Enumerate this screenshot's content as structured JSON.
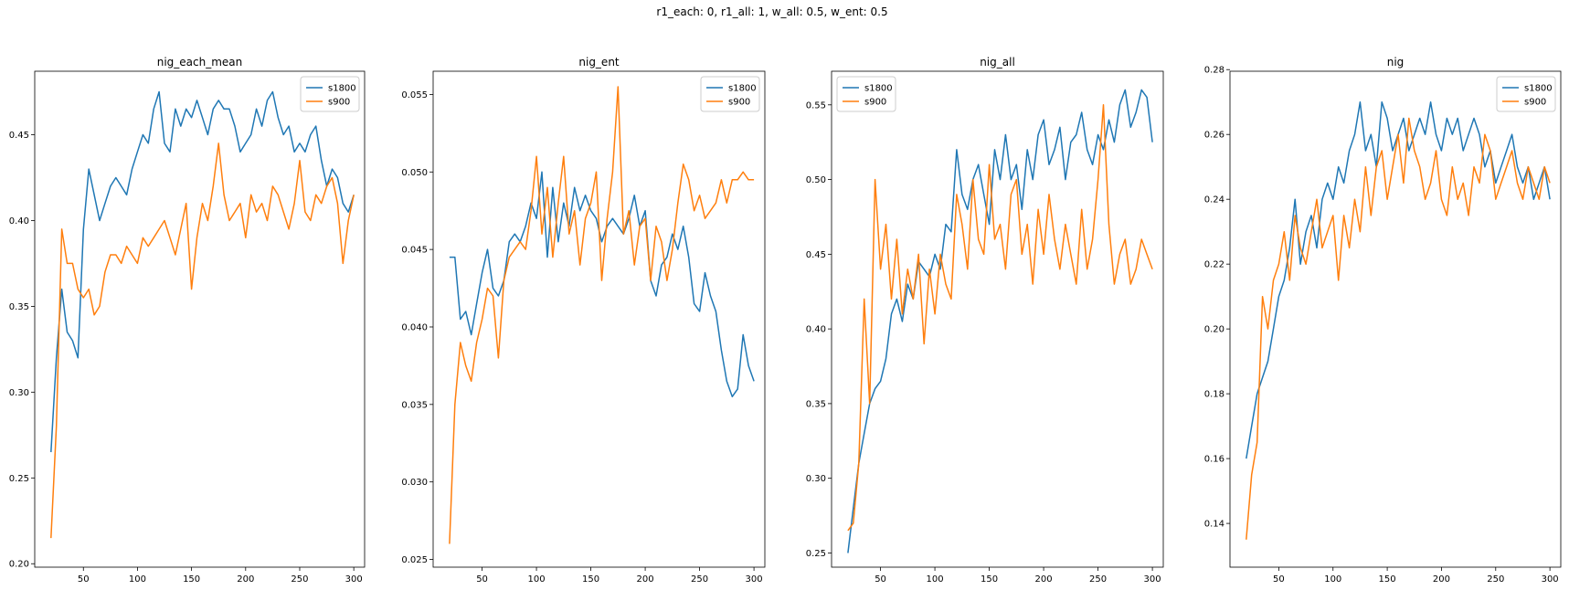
{
  "figure": {
    "suptitle": "r1_each: 0, r1_all: 1, w_all: 0.5, w_ent: 0.5"
  },
  "colors": {
    "s1800": "#1f77b4",
    "s900": "#ff7f0e"
  },
  "chart_data": [
    {
      "type": "line",
      "title": "nig_each_mean",
      "xlabel": "",
      "ylabel": "",
      "xlim": [
        5,
        310
      ],
      "ylim": [
        0.198,
        0.487
      ],
      "xticks": [
        "50",
        "100",
        "150",
        "200",
        "250",
        "300"
      ],
      "yticks": [
        "0.20",
        "0.25",
        "0.30",
        "0.35",
        "0.40",
        "0.45"
      ],
      "legend": {
        "loc": "upper-right",
        "entries": [
          "s1800",
          "s900"
        ]
      },
      "series": [
        {
          "name": "s1800",
          "x": [
            20,
            25,
            30,
            35,
            40,
            45,
            50,
            55,
            60,
            65,
            70,
            75,
            80,
            85,
            90,
            95,
            100,
            105,
            110,
            115,
            120,
            125,
            130,
            135,
            140,
            145,
            150,
            155,
            160,
            165,
            170,
            175,
            180,
            185,
            190,
            195,
            200,
            205,
            210,
            215,
            220,
            225,
            230,
            235,
            240,
            245,
            250,
            255,
            260,
            265,
            270,
            275,
            280,
            285,
            290,
            295,
            300
          ],
          "values": [
            0.265,
            0.32,
            0.36,
            0.335,
            0.33,
            0.32,
            0.395,
            0.43,
            0.415,
            0.4,
            0.41,
            0.42,
            0.425,
            0.42,
            0.415,
            0.43,
            0.44,
            0.45,
            0.445,
            0.465,
            0.475,
            0.445,
            0.44,
            0.465,
            0.455,
            0.465,
            0.46,
            0.47,
            0.46,
            0.45,
            0.465,
            0.47,
            0.465,
            0.465,
            0.455,
            0.44,
            0.445,
            0.45,
            0.465,
            0.455,
            0.47,
            0.475,
            0.46,
            0.45,
            0.455,
            0.44,
            0.445,
            0.44,
            0.45,
            0.455,
            0.435,
            0.42,
            0.43,
            0.425,
            0.41,
            0.405,
            0.415
          ]
        },
        {
          "name": "s900",
          "x": [
            20,
            25,
            30,
            35,
            40,
            45,
            50,
            55,
            60,
            65,
            70,
            75,
            80,
            85,
            90,
            95,
            100,
            105,
            110,
            115,
            120,
            125,
            130,
            135,
            140,
            145,
            150,
            155,
            160,
            165,
            170,
            175,
            180,
            185,
            190,
            195,
            200,
            205,
            210,
            215,
            220,
            225,
            230,
            235,
            240,
            245,
            250,
            255,
            260,
            265,
            270,
            275,
            280,
            285,
            290,
            295,
            300
          ],
          "values": [
            0.215,
            0.28,
            0.395,
            0.375,
            0.375,
            0.36,
            0.355,
            0.36,
            0.345,
            0.35,
            0.37,
            0.38,
            0.38,
            0.375,
            0.385,
            0.38,
            0.375,
            0.39,
            0.385,
            0.39,
            0.395,
            0.4,
            0.39,
            0.38,
            0.395,
            0.41,
            0.36,
            0.39,
            0.41,
            0.4,
            0.42,
            0.445,
            0.415,
            0.4,
            0.405,
            0.41,
            0.39,
            0.415,
            0.405,
            0.41,
            0.4,
            0.42,
            0.415,
            0.405,
            0.395,
            0.41,
            0.435,
            0.405,
            0.4,
            0.415,
            0.41,
            0.42,
            0.425,
            0.41,
            0.375,
            0.4,
            0.415
          ]
        }
      ]
    },
    {
      "type": "line",
      "title": "nig_ent",
      "xlabel": "",
      "ylabel": "",
      "xlim": [
        5,
        310
      ],
      "ylim": [
        0.0245,
        0.0565
      ],
      "xticks": [
        "50",
        "100",
        "150",
        "200",
        "250",
        "300"
      ],
      "yticks": [
        "0.025",
        "0.030",
        "0.035",
        "0.040",
        "0.045",
        "0.050",
        "0.055"
      ],
      "legend": {
        "loc": "upper-right",
        "entries": [
          "s1800",
          "s900"
        ]
      },
      "series": [
        {
          "name": "s1800",
          "x": [
            20,
            25,
            30,
            35,
            40,
            45,
            50,
            55,
            60,
            65,
            70,
            75,
            80,
            85,
            90,
            95,
            100,
            105,
            110,
            115,
            120,
            125,
            130,
            135,
            140,
            145,
            150,
            155,
            160,
            165,
            170,
            175,
            180,
            185,
            190,
            195,
            200,
            205,
            210,
            215,
            220,
            225,
            230,
            235,
            240,
            245,
            250,
            255,
            260,
            265,
            270,
            275,
            280,
            285,
            290,
            295,
            300
          ],
          "values": [
            0.0445,
            0.0445,
            0.0405,
            0.041,
            0.0395,
            0.0415,
            0.0435,
            0.045,
            0.0425,
            0.042,
            0.043,
            0.0455,
            0.046,
            0.0455,
            0.0465,
            0.048,
            0.047,
            0.05,
            0.0445,
            0.049,
            0.0455,
            0.048,
            0.0465,
            0.049,
            0.0475,
            0.0485,
            0.0475,
            0.047,
            0.0455,
            0.0465,
            0.047,
            0.0465,
            0.046,
            0.047,
            0.0485,
            0.0465,
            0.0475,
            0.043,
            0.042,
            0.044,
            0.0445,
            0.046,
            0.045,
            0.0465,
            0.0445,
            0.0415,
            0.041,
            0.0435,
            0.042,
            0.041,
            0.0385,
            0.0365,
            0.0355,
            0.036,
            0.0395,
            0.0375,
            0.0365
          ]
        },
        {
          "name": "s900",
          "x": [
            20,
            25,
            30,
            35,
            40,
            45,
            50,
            55,
            60,
            65,
            70,
            75,
            80,
            85,
            90,
            95,
            100,
            105,
            110,
            115,
            120,
            125,
            130,
            135,
            140,
            145,
            150,
            155,
            160,
            165,
            170,
            175,
            180,
            185,
            190,
            195,
            200,
            205,
            210,
            215,
            220,
            225,
            230,
            235,
            240,
            245,
            250,
            255,
            260,
            265,
            270,
            275,
            280,
            285,
            290,
            295,
            300
          ],
          "values": [
            0.026,
            0.035,
            0.039,
            0.0375,
            0.0365,
            0.039,
            0.0405,
            0.0425,
            0.042,
            0.038,
            0.043,
            0.0445,
            0.045,
            0.0455,
            0.045,
            0.0475,
            0.051,
            0.046,
            0.049,
            0.0445,
            0.048,
            0.051,
            0.046,
            0.0475,
            0.044,
            0.047,
            0.048,
            0.05,
            0.043,
            0.047,
            0.05,
            0.0555,
            0.046,
            0.0475,
            0.044,
            0.0465,
            0.047,
            0.043,
            0.0465,
            0.0455,
            0.043,
            0.045,
            0.048,
            0.0505,
            0.0495,
            0.0475,
            0.0485,
            0.047,
            0.0475,
            0.048,
            0.0495,
            0.048,
            0.0495,
            0.0495,
            0.05,
            0.0495,
            0.0495
          ]
        }
      ]
    },
    {
      "type": "line",
      "title": "nig_all",
      "xlabel": "",
      "ylabel": "",
      "xlim": [
        5,
        310
      ],
      "ylim": [
        0.2405,
        0.5725
      ],
      "xticks": [
        "50",
        "100",
        "150",
        "200",
        "250",
        "300"
      ],
      "yticks": [
        "0.25",
        "0.30",
        "0.35",
        "0.40",
        "0.45",
        "0.50",
        "0.55"
      ],
      "legend": {
        "loc": "upper-left",
        "entries": [
          "s1800",
          "s900"
        ]
      },
      "series": [
        {
          "name": "s1800",
          "x": [
            20,
            25,
            30,
            35,
            40,
            45,
            50,
            55,
            60,
            65,
            70,
            75,
            80,
            85,
            90,
            95,
            100,
            105,
            110,
            115,
            120,
            125,
            130,
            135,
            140,
            145,
            150,
            155,
            160,
            165,
            170,
            175,
            180,
            185,
            190,
            195,
            200,
            205,
            210,
            215,
            220,
            225,
            230,
            235,
            240,
            245,
            250,
            255,
            260,
            265,
            270,
            275,
            280,
            285,
            290,
            295,
            300
          ],
          "values": [
            0.25,
            0.28,
            0.31,
            0.33,
            0.35,
            0.36,
            0.365,
            0.38,
            0.41,
            0.42,
            0.405,
            0.43,
            0.42,
            0.445,
            0.44,
            0.435,
            0.45,
            0.44,
            0.47,
            0.465,
            0.52,
            0.49,
            0.48,
            0.5,
            0.51,
            0.49,
            0.47,
            0.52,
            0.5,
            0.53,
            0.5,
            0.51,
            0.48,
            0.52,
            0.5,
            0.53,
            0.54,
            0.51,
            0.52,
            0.535,
            0.5,
            0.525,
            0.53,
            0.545,
            0.52,
            0.51,
            0.53,
            0.52,
            0.54,
            0.525,
            0.55,
            0.56,
            0.535,
            0.545,
            0.56,
            0.555,
            0.525
          ]
        },
        {
          "name": "s900",
          "x": [
            20,
            25,
            30,
            35,
            40,
            45,
            50,
            55,
            60,
            65,
            70,
            75,
            80,
            85,
            90,
            95,
            100,
            105,
            110,
            115,
            120,
            125,
            130,
            135,
            140,
            145,
            150,
            155,
            160,
            165,
            170,
            175,
            180,
            185,
            190,
            195,
            200,
            205,
            210,
            215,
            220,
            225,
            230,
            235,
            240,
            245,
            250,
            255,
            260,
            265,
            270,
            275,
            280,
            285,
            290,
            295,
            300
          ],
          "values": [
            0.265,
            0.27,
            0.31,
            0.42,
            0.35,
            0.5,
            0.44,
            0.47,
            0.42,
            0.46,
            0.41,
            0.44,
            0.42,
            0.45,
            0.39,
            0.44,
            0.41,
            0.45,
            0.43,
            0.42,
            0.49,
            0.47,
            0.44,
            0.5,
            0.46,
            0.45,
            0.51,
            0.46,
            0.47,
            0.44,
            0.49,
            0.5,
            0.45,
            0.47,
            0.43,
            0.48,
            0.45,
            0.49,
            0.46,
            0.44,
            0.47,
            0.45,
            0.43,
            0.48,
            0.44,
            0.46,
            0.5,
            0.55,
            0.47,
            0.43,
            0.45,
            0.46,
            0.43,
            0.44,
            0.46,
            0.45,
            0.44
          ]
        }
      ]
    },
    {
      "type": "line",
      "title": "nig",
      "xlabel": "",
      "ylabel": "",
      "xlim": [
        5,
        310
      ],
      "ylim": [
        0.1265,
        0.2795
      ],
      "xticks": [
        "50",
        "100",
        "150",
        "200",
        "250",
        "300"
      ],
      "yticks": [
        "0.14",
        "0.16",
        "0.18",
        "0.20",
        "0.22",
        "0.24",
        "0.26",
        "0.28"
      ],
      "legend": {
        "loc": "upper-right",
        "entries": [
          "s1800",
          "s900"
        ]
      },
      "series": [
        {
          "name": "s1800",
          "x": [
            20,
            25,
            30,
            35,
            40,
            45,
            50,
            55,
            60,
            65,
            70,
            75,
            80,
            85,
            90,
            95,
            100,
            105,
            110,
            115,
            120,
            125,
            130,
            135,
            140,
            145,
            150,
            155,
            160,
            165,
            170,
            175,
            180,
            185,
            190,
            195,
            200,
            205,
            210,
            215,
            220,
            225,
            230,
            235,
            240,
            245,
            250,
            255,
            260,
            265,
            270,
            275,
            280,
            285,
            290,
            295,
            300
          ],
          "values": [
            0.16,
            0.17,
            0.18,
            0.185,
            0.19,
            0.2,
            0.21,
            0.215,
            0.225,
            0.24,
            0.22,
            0.23,
            0.235,
            0.225,
            0.24,
            0.245,
            0.24,
            0.25,
            0.245,
            0.255,
            0.26,
            0.27,
            0.255,
            0.26,
            0.25,
            0.27,
            0.265,
            0.255,
            0.26,
            0.265,
            0.255,
            0.26,
            0.265,
            0.26,
            0.27,
            0.26,
            0.255,
            0.265,
            0.26,
            0.265,
            0.255,
            0.26,
            0.265,
            0.26,
            0.25,
            0.255,
            0.245,
            0.25,
            0.255,
            0.26,
            0.25,
            0.245,
            0.25,
            0.24,
            0.245,
            0.25,
            0.24
          ]
        },
        {
          "name": "s900",
          "x": [
            20,
            25,
            30,
            35,
            40,
            45,
            50,
            55,
            60,
            65,
            70,
            75,
            80,
            85,
            90,
            95,
            100,
            105,
            110,
            115,
            120,
            125,
            130,
            135,
            140,
            145,
            150,
            155,
            160,
            165,
            170,
            175,
            180,
            185,
            190,
            195,
            200,
            205,
            210,
            215,
            220,
            225,
            230,
            235,
            240,
            245,
            250,
            255,
            260,
            265,
            270,
            275,
            280,
            285,
            290,
            295,
            300
          ],
          "values": [
            0.135,
            0.155,
            0.165,
            0.21,
            0.2,
            0.215,
            0.22,
            0.23,
            0.215,
            0.235,
            0.225,
            0.22,
            0.23,
            0.24,
            0.225,
            0.23,
            0.235,
            0.215,
            0.235,
            0.225,
            0.24,
            0.23,
            0.25,
            0.235,
            0.25,
            0.255,
            0.24,
            0.25,
            0.26,
            0.245,
            0.265,
            0.255,
            0.25,
            0.24,
            0.245,
            0.255,
            0.24,
            0.235,
            0.25,
            0.24,
            0.245,
            0.235,
            0.25,
            0.245,
            0.26,
            0.255,
            0.24,
            0.245,
            0.25,
            0.255,
            0.245,
            0.24,
            0.25,
            0.245,
            0.24,
            0.25,
            0.245
          ]
        }
      ]
    }
  ]
}
